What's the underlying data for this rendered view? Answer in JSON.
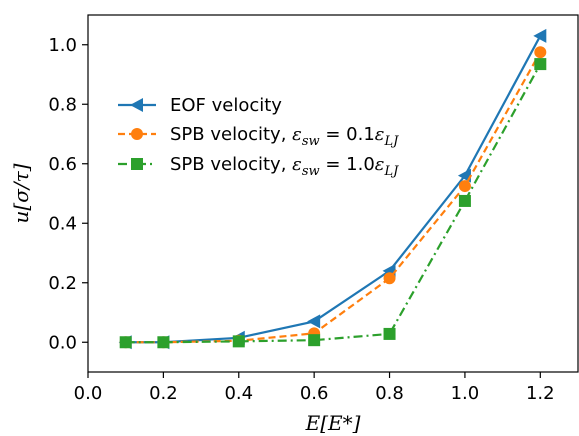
{
  "chart_data": {
    "type": "line",
    "title": "",
    "xlabel": "E[E*]",
    "ylabel": "u[σ/τ]",
    "xlim": [
      0.0,
      1.3
    ],
    "ylim": [
      -0.1,
      1.1
    ],
    "xticks": [
      0.0,
      0.2,
      0.4,
      0.6,
      0.8,
      1.0,
      1.2
    ],
    "xtick_labels": [
      "0.0",
      "0.2",
      "0.4",
      "0.6",
      "0.8",
      "1.0",
      "1.2"
    ],
    "yticks": [
      0.0,
      0.2,
      0.4,
      0.6,
      0.8,
      1.0
    ],
    "ytick_labels": [
      "0.0",
      "0.2",
      "0.4",
      "0.6",
      "0.8",
      "1.0"
    ],
    "grid": false,
    "legend_position": "center-left",
    "series": [
      {
        "name": "EOF velocity",
        "color": "#1f77b4",
        "marker": "triangle-left",
        "linestyle": "solid",
        "x": [
          0.1,
          0.2,
          0.4,
          0.6,
          0.8,
          1.0,
          1.2
        ],
        "y": [
          0.0,
          0.0,
          0.015,
          0.07,
          0.24,
          0.56,
          1.03
        ]
      },
      {
        "name": "SPB velocity, ε_sw = 0.1ε_LJ",
        "color": "#ff7f0e",
        "marker": "circle",
        "linestyle": "dashed",
        "x": [
          0.1,
          0.2,
          0.4,
          0.6,
          0.8,
          1.0,
          1.2
        ],
        "y": [
          0.0,
          0.0,
          0.005,
          0.03,
          0.215,
          0.525,
          0.975
        ]
      },
      {
        "name": "SPB velocity, ε_sw = 1.0ε_LJ",
        "color": "#2ca02c",
        "marker": "square",
        "linestyle": "dashdot",
        "x": [
          0.1,
          0.2,
          0.4,
          0.6,
          0.8,
          1.0,
          1.2
        ],
        "y": [
          0.0,
          0.0,
          0.003,
          0.007,
          0.028,
          0.475,
          0.935
        ]
      }
    ]
  }
}
